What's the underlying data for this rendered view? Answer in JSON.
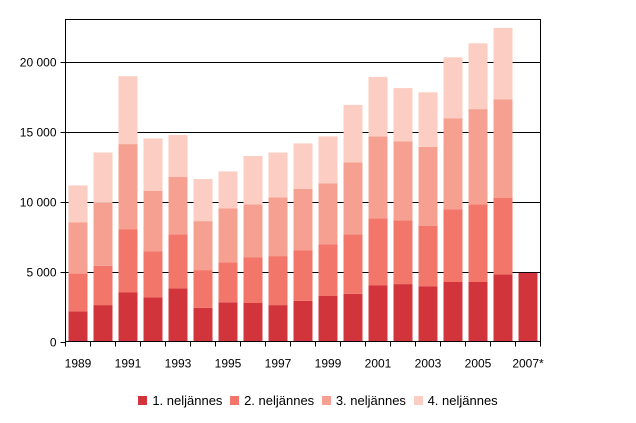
{
  "chart_data": {
    "type": "bar",
    "stacked": true,
    "title": "",
    "xlabel": "",
    "ylabel": "",
    "ylim": [
      0,
      23000
    ],
    "grid": true,
    "legend_position": "bottom-center",
    "yticks": [
      0,
      5000,
      10000,
      15000,
      20000
    ],
    "ytick_labels": [
      "0",
      "5 000",
      "10 000",
      "15 000",
      "20 000"
    ],
    "categories": [
      "1989",
      "1990",
      "1991",
      "1992",
      "1993",
      "1994",
      "1995",
      "1996",
      "1997",
      "1998",
      "1999",
      "2000",
      "2001",
      "2002",
      "2003",
      "2004",
      "2005",
      "2006",
      "2007*"
    ],
    "xtick_labels": [
      "1989",
      "1991",
      "1993",
      "1995",
      "1997",
      "1999",
      "2001",
      "2003",
      "2005",
      "2007*"
    ],
    "series": [
      {
        "name": "1. neljännes",
        "color": "#d1343a",
        "values": [
          2150,
          2600,
          3500,
          3150,
          3800,
          2400,
          2800,
          2750,
          2600,
          2900,
          3250,
          3400,
          4000,
          4100,
          3950,
          4250,
          4250,
          4800,
          4900
        ]
      },
      {
        "name": "2. neljännes",
        "color": "#f27669",
        "values": [
          2700,
          2800,
          4500,
          3300,
          3850,
          2700,
          2850,
          3250,
          3500,
          3600,
          3700,
          4250,
          4800,
          4550,
          4300,
          5200,
          5550,
          5450,
          0
        ]
      },
      {
        "name": "3. neljännes",
        "color": "#f5a090",
        "values": [
          3650,
          4500,
          6100,
          4300,
          4100,
          3500,
          3850,
          3800,
          4200,
          4400,
          4350,
          5150,
          5850,
          5650,
          5650,
          6500,
          6800,
          7050,
          0
        ]
      },
      {
        "name": "4. neljännes",
        "color": "#fccdc2",
        "values": [
          2650,
          3600,
          4850,
          3750,
          3000,
          3000,
          2650,
          3450,
          3200,
          3250,
          3350,
          4100,
          4250,
          3800,
          3900,
          4350,
          4700,
          5100,
          0
        ]
      }
    ]
  }
}
